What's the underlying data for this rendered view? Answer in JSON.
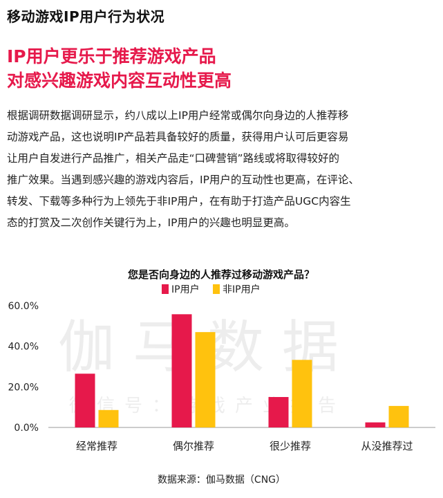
{
  "page": {
    "section_title": "移动游戏IP用户行为状况",
    "headline_line1": "IP用户更乐于推荐游戏产品",
    "headline_line2": "对感兴趣游戏内容互动性更高",
    "paragraph_lines": [
      "根据调研数据调研显示，约八成以上IP用户经常或偶尔向身边的人推荐移",
      "动游戏产品，这也说明IP产品若具备较好的质量，获得用户认可后更容易",
      "让用户自发进行产品推广，相关产品走“口碑营销”路线或将取得较好的",
      "推广效果。当遇到感兴趣的游戏内容后，IP用户的互动性也更高，在评论、",
      "转发、下载等多种行为上领先于非IP用户，在有助于打造产品UGC内容生",
      "态的打赏及二次创作关键行为上，IP用户的兴趣也明显更高。"
    ],
    "source": "数据来源：伽马数据（CNG）"
  },
  "watermark": {
    "main": "伽马数据",
    "sub": "微信号：游戏产业报告"
  },
  "chart_data": {
    "type": "bar",
    "title": "您是否向身边的人推荐过移动游戏产品？",
    "categories": [
      "经常推荐",
      "偶尔推荐",
      "很少推荐",
      "从没推荐过"
    ],
    "series": [
      {
        "name": "IP用户",
        "color": "#e6194b",
        "values": [
          26.5,
          55.8,
          15.0,
          2.5
        ]
      },
      {
        "name": "非IP用户",
        "color": "#ffc20e",
        "values": [
          8.6,
          47.0,
          33.3,
          10.6
        ]
      }
    ],
    "y_ticks": [
      "0.0%",
      "20.0%",
      "40.0%",
      "60.0%"
    ],
    "ylim": [
      0,
      60
    ],
    "legend_position": "top-center",
    "grid": false
  }
}
